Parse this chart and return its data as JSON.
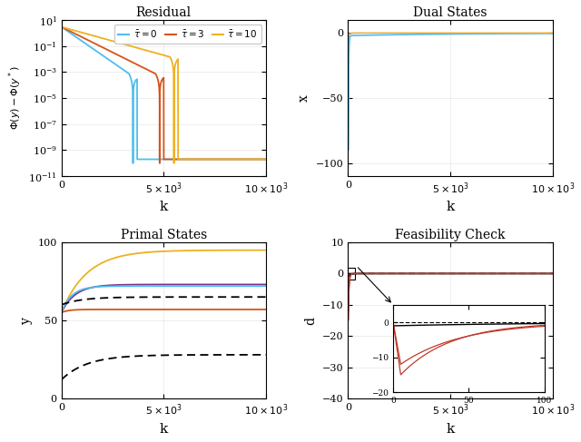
{
  "title_residual": "Residual",
  "title_dual": "Dual States",
  "title_primal": "Primal States",
  "title_feasibility": "Feasibility Check",
  "xlabel": "k",
  "ylabel_residual": "$\\Phi(y) - \\Phi(y^*)$",
  "ylabel_dual": "x",
  "ylabel_primal": "y",
  "ylabel_feasibility": "d",
  "tau_labels": [
    "$\\bar{\\tau}=0$",
    "$\\bar{\\tau}=3$",
    "$\\bar{\\tau}=10$"
  ],
  "color_tau0": "#4DBEEE",
  "color_tau3": "#D95319",
  "color_tau10": "#EDB120",
  "color_purple": "#7E2F8E",
  "color_black": "#000000",
  "color_red": "#C0392B",
  "n_steps": 10001
}
